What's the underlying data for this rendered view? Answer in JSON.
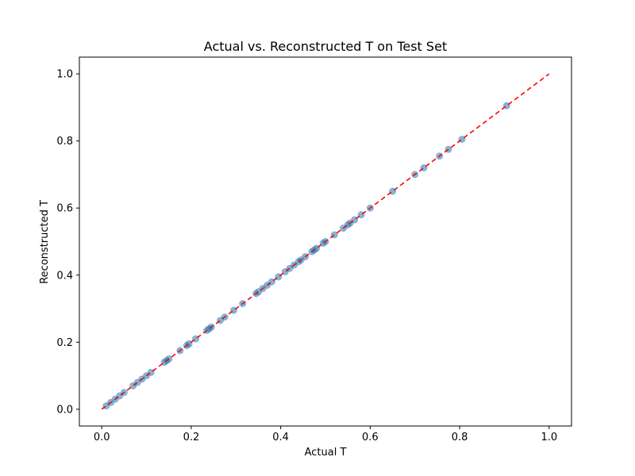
{
  "chart_data": {
    "type": "scatter",
    "title": "Actual vs. Reconstructed T on Test Set",
    "xlabel": "Actual T",
    "ylabel": "Reconstructed T",
    "xlim": [
      -0.05,
      1.05
    ],
    "ylim": [
      -0.05,
      1.05
    ],
    "xticks": [
      0.0,
      0.2,
      0.4,
      0.6,
      0.8,
      1.0
    ],
    "yticks": [
      0.0,
      0.2,
      0.4,
      0.6,
      0.8,
      1.0
    ],
    "xtick_labels": [
      "0.0",
      "0.2",
      "0.4",
      "0.6",
      "0.8",
      "1.0"
    ],
    "ytick_labels": [
      "0.0",
      "0.2",
      "0.4",
      "0.6",
      "0.8",
      "1.0"
    ],
    "grid": false,
    "colors": {
      "points": "#1f77b4",
      "reference_line": "#ff0000"
    },
    "reference_line": {
      "x": [
        0.0,
        1.0
      ],
      "y": [
        0.0,
        1.0
      ],
      "style": "dashed"
    },
    "series": [
      {
        "x": [
          0.01,
          0.02,
          0.03,
          0.04,
          0.05,
          0.07,
          0.08,
          0.09,
          0.1,
          0.11,
          0.14,
          0.145,
          0.15,
          0.175,
          0.19,
          0.195,
          0.21,
          0.235,
          0.24,
          0.245,
          0.265,
          0.275,
          0.295,
          0.315,
          0.345,
          0.35,
          0.36,
          0.37,
          0.38,
          0.395,
          0.41,
          0.42,
          0.43,
          0.44,
          0.445,
          0.455,
          0.47,
          0.475,
          0.48,
          0.495,
          0.5,
          0.52,
          0.54,
          0.55,
          0.555,
          0.565,
          0.58,
          0.6,
          0.65,
          0.7,
          0.72,
          0.755,
          0.775,
          0.805,
          0.905
        ],
        "y": [
          0.01,
          0.02,
          0.03,
          0.04,
          0.05,
          0.07,
          0.08,
          0.09,
          0.1,
          0.11,
          0.14,
          0.145,
          0.15,
          0.175,
          0.19,
          0.195,
          0.21,
          0.235,
          0.24,
          0.245,
          0.265,
          0.275,
          0.295,
          0.315,
          0.345,
          0.35,
          0.36,
          0.37,
          0.38,
          0.395,
          0.41,
          0.42,
          0.43,
          0.44,
          0.445,
          0.455,
          0.47,
          0.475,
          0.48,
          0.495,
          0.5,
          0.52,
          0.54,
          0.55,
          0.555,
          0.565,
          0.58,
          0.6,
          0.65,
          0.7,
          0.72,
          0.755,
          0.775,
          0.805,
          0.905
        ]
      }
    ]
  }
}
